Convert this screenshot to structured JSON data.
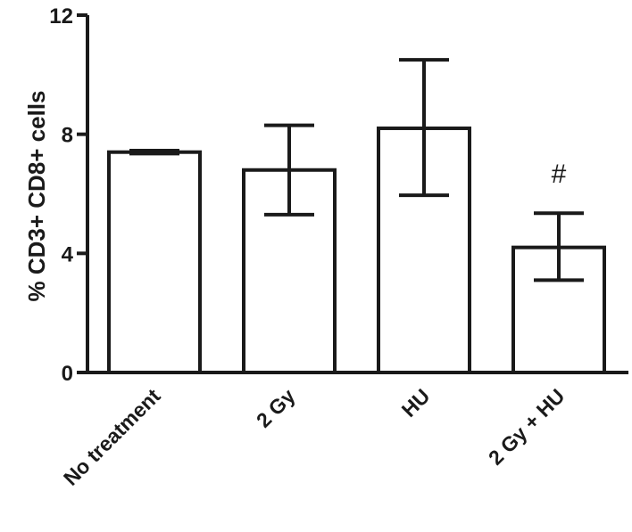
{
  "chart_data": {
    "type": "bar",
    "categories": [
      "No treatment",
      "2 Gy",
      "HU",
      "2 Gy + HU"
    ],
    "values": [
      7.4,
      6.8,
      8.2,
      4.2
    ],
    "errors": [
      {
        "low": 7.35,
        "high": 7.45
      },
      {
        "low": 5.3,
        "high": 8.3
      },
      {
        "low": 5.95,
        "high": 10.5
      },
      {
        "low": 3.1,
        "high": 5.35
      }
    ],
    "annotations": [
      {
        "category": "2 Gy + HU",
        "text": "#"
      }
    ],
    "ylabel": "% CD3+  CD8+ cells",
    "ylim": [
      0,
      12
    ],
    "yticks": [
      0,
      4,
      8,
      12
    ],
    "grid": false,
    "bar_fill": "#ffffff",
    "bar_stroke": "#1a1a1a"
  }
}
